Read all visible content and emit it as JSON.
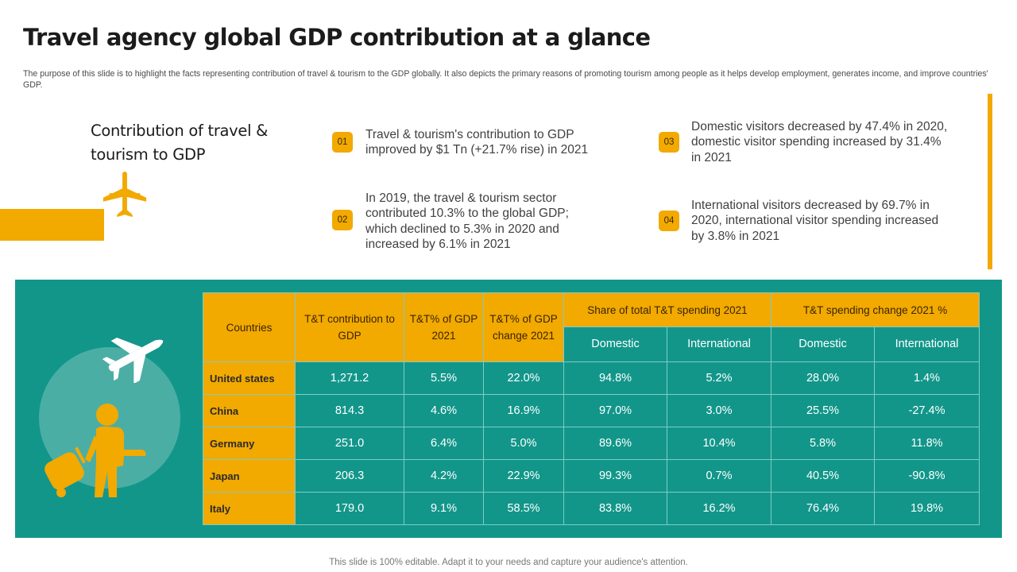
{
  "title": "Travel agency global GDP contribution at a glance",
  "subtitle": "The purpose of this slide is to highlight the facts representing contribution of travel & tourism to the GDP globally. It also depicts the primary reasons of promoting tourism among people as it helps develop employment, generates income, and improve countries' GDP.",
  "contribution_heading": "Contribution of travel & tourism to GDP",
  "facts": [
    {
      "badge": "01",
      "text": "Travel & tourism's contribution to GDP improved by $1 Tn (+21.7% rise) in 2021"
    },
    {
      "badge": "02",
      "text": "In 2019, the travel & tourism sector contributed 10.3% to the global GDP; which declined to 5.3% in 2020 and increased by 6.1% in 2021"
    },
    {
      "badge": "03",
      "text": "Domestic visitors decreased by 47.4% in 2020, domestic visitor spending increased by 31.4% in 2021"
    },
    {
      "badge": "04",
      "text": "International  visitors decreased by 69.7% in 2020, international visitor spending increased by 3.8% in 2021"
    }
  ],
  "table": {
    "headers": {
      "countries": "Countries",
      "contribution": "T&T contribution to GDP",
      "pct_gdp": "T&T% of GDP 2021",
      "pct_change": "T&T% of GDP change 2021",
      "share_group": "Share of total  T&T spending 2021",
      "change_group": "T&T spending change 2021 %",
      "domestic": "Domestic",
      "international": "International"
    },
    "rows": [
      {
        "country": "United states",
        "contribution": "1,271.2",
        "pct_gdp": "5.5%",
        "pct_change": "22.0%",
        "share_domestic": "94.8%",
        "share_international": "5.2%",
        "change_domestic": "28.0%",
        "change_international": "1.4%"
      },
      {
        "country": "China",
        "contribution": "814.3",
        "pct_gdp": "4.6%",
        "pct_change": "16.9%",
        "share_domestic": "97.0%",
        "share_international": "3.0%",
        "change_domestic": "25.5%",
        "change_international": "-27.4%"
      },
      {
        "country": "Germany",
        "contribution": "251.0",
        "pct_gdp": "6.4%",
        "pct_change": "5.0%",
        "share_domestic": "89.6%",
        "share_international": "10.4%",
        "change_domestic": "5.8%",
        "change_international": "11.8%"
      },
      {
        "country": "Japan",
        "contribution": "206.3",
        "pct_gdp": "4.2%",
        "pct_change": "22.9%",
        "share_domestic": "99.3%",
        "share_international": "0.7%",
        "change_domestic": "40.5%",
        "change_international": "-90.8%"
      },
      {
        "country": "Italy",
        "contribution": "179.0",
        "pct_gdp": "9.1%",
        "pct_change": "58.5%",
        "share_domestic": "83.8%",
        "share_international": "16.2%",
        "change_domestic": "76.4%",
        "change_international": "19.8%"
      }
    ]
  },
  "icons": {
    "plane_small": "airplane-icon",
    "plane_large": "airplane-icon",
    "traveler": "traveler-with-luggage-icon"
  },
  "colors": {
    "accent": "#F2A900",
    "teal": "#12968A",
    "teal_light": "#4BAEA5"
  },
  "footer": "This slide is 100% editable. Adapt it to your needs and capture your audience's attention."
}
